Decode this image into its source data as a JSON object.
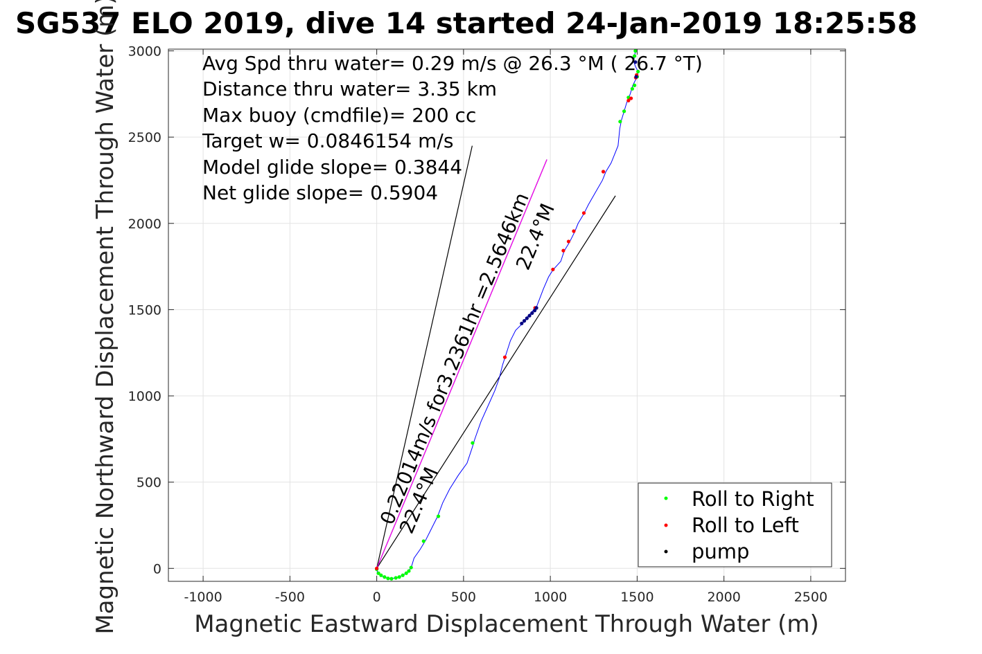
{
  "chart_data": {
    "type": "line",
    "title": "SG537 ELO 2019, dive 14 started 24-Jan-2019 18:25:58",
    "xlabel": "Magnetic Eastward Displacement Through Water (m)",
    "ylabel": "Magnetic Northward Displacement Through Water (m)",
    "xlim": [
      -1200,
      2700
    ],
    "ylim": [
      -75,
      3010
    ],
    "xticks": [
      -1000,
      -500,
      0,
      500,
      1000,
      1500,
      2000,
      2500
    ],
    "yticks": [
      0,
      500,
      1000,
      1500,
      2000,
      2500,
      3000
    ],
    "grid": true,
    "annotations": [
      "Avg Spd thru water=  0.29 m/s @  26.3 °M ( 26.7 °T)",
      "Distance thru water=  3.35 km",
      "Max buoy (cmdfile)= 200 cc",
      "Target w= 0.0846154 m/s",
      "Model glide slope= 0.3844",
      "Net glide slope= 0.5904"
    ],
    "diagonal_labels": {
      "course_label": "0.22014m/s for3.2361hr =2.5646km",
      "heading_label_upper": "22.4°M",
      "heading_label_lower": "22.4°M"
    },
    "reference_lines": [
      {
        "name": "cone-left",
        "color": "#000000",
        "points": [
          [
            0,
            0
          ],
          [
            550,
            2450
          ]
        ]
      },
      {
        "name": "cone-right",
        "color": "#000000",
        "points": [
          [
            0,
            0
          ],
          [
            1375,
            2160
          ]
        ]
      },
      {
        "name": "heading-line",
        "color": "#000000",
        "points": [
          [
            0,
            0
          ],
          [
            980,
            2370
          ]
        ]
      },
      {
        "name": "current-line",
        "color": "#ff00ff",
        "points": [
          [
            0,
            0
          ],
          [
            980,
            2370
          ]
        ]
      }
    ],
    "series": [
      {
        "name": "",
        "color": "#0000ff",
        "points": [
          [
            0,
            0
          ],
          [
            5,
            -25
          ],
          [
            30,
            -45
          ],
          [
            70,
            -60
          ],
          [
            110,
            -55
          ],
          [
            150,
            -40
          ],
          [
            185,
            -15
          ],
          [
            200,
            10
          ],
          [
            215,
            60
          ],
          [
            250,
            110
          ],
          [
            280,
            160
          ],
          [
            310,
            220
          ],
          [
            350,
            300
          ],
          [
            380,
            380
          ],
          [
            420,
            460
          ],
          [
            470,
            540
          ],
          [
            520,
            610
          ],
          [
            550,
            700
          ],
          [
            565,
            750
          ],
          [
            600,
            850
          ],
          [
            640,
            940
          ],
          [
            680,
            1030
          ],
          [
            705,
            1100
          ],
          [
            725,
            1180
          ],
          [
            738,
            1220
          ],
          [
            770,
            1320
          ],
          [
            800,
            1380
          ],
          [
            840,
            1420
          ],
          [
            870,
            1460
          ],
          [
            905,
            1500
          ],
          [
            920,
            1515
          ],
          [
            960,
            1620
          ],
          [
            990,
            1690
          ],
          [
            1015,
            1730
          ],
          [
            1060,
            1780
          ],
          [
            1080,
            1840
          ],
          [
            1110,
            1890
          ],
          [
            1140,
            1950
          ],
          [
            1160,
            2000
          ],
          [
            1190,
            2050
          ],
          [
            1220,
            2110
          ],
          [
            1260,
            2180
          ],
          [
            1300,
            2250
          ],
          [
            1320,
            2300
          ],
          [
            1350,
            2350
          ],
          [
            1370,
            2400
          ],
          [
            1390,
            2450
          ],
          [
            1395,
            2500
          ],
          [
            1400,
            2550
          ],
          [
            1410,
            2600
          ],
          [
            1425,
            2650
          ],
          [
            1440,
            2700
          ],
          [
            1460,
            2750
          ],
          [
            1475,
            2800
          ],
          [
            1500,
            2850
          ],
          [
            1505,
            2880
          ],
          [
            1490,
            2910
          ],
          [
            1480,
            2940
          ],
          [
            1485,
            2970
          ],
          [
            1490,
            3000
          ]
        ]
      },
      {
        "name": "Roll to Right",
        "color": "#00ff00",
        "points": [
          [
            0,
            -5
          ],
          [
            10,
            -28
          ],
          [
            25,
            -40
          ],
          [
            45,
            -50
          ],
          [
            65,
            -58
          ],
          [
            85,
            -60
          ],
          [
            110,
            -55
          ],
          [
            130,
            -50
          ],
          [
            150,
            -40
          ],
          [
            170,
            -28
          ],
          [
            185,
            -15
          ],
          [
            198,
            5
          ],
          [
            270,
            158
          ],
          [
            355,
            302
          ],
          [
            552,
            727
          ],
          [
            1402,
            2590
          ],
          [
            1425,
            2650
          ],
          [
            1450,
            2730
          ],
          [
            1472,
            2780
          ],
          [
            1485,
            2800
          ],
          [
            1500,
            2850
          ],
          [
            1505,
            2880
          ],
          [
            1485,
            2970
          ],
          [
            1490,
            3000
          ]
        ]
      },
      {
        "name": "Roll to Left",
        "color": "#ff0000",
        "points": [
          [
            0,
            0
          ],
          [
            738,
            1224
          ],
          [
            912,
            1510
          ],
          [
            1015,
            1733
          ],
          [
            1075,
            1842
          ],
          [
            1105,
            1895
          ],
          [
            1135,
            1955
          ],
          [
            1193,
            2060
          ],
          [
            1305,
            2300
          ],
          [
            1450,
            2712
          ],
          [
            1465,
            2725
          ],
          [
            1492,
            2845
          ],
          [
            1497,
            2860
          ]
        ]
      },
      {
        "name": "pump",
        "color": "#000080",
        "points": [
          [
            835,
            1420
          ],
          [
            850,
            1435
          ],
          [
            865,
            1450
          ],
          [
            880,
            1465
          ],
          [
            895,
            1480
          ],
          [
            910,
            1495
          ],
          [
            920,
            1510
          ],
          [
            1490,
            2935
          ],
          [
            1495,
            2850
          ]
        ]
      }
    ],
    "legend": {
      "placement": "bottom-right",
      "entries": [
        {
          "label": "Roll to Right",
          "color": "#00ff00"
        },
        {
          "label": "Roll to Left",
          "color": "#ff0000"
        },
        {
          "label": "pump",
          "color": "#000000"
        }
      ]
    }
  }
}
